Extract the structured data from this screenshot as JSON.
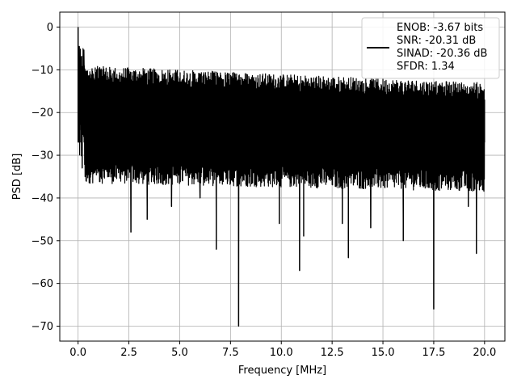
{
  "chart_data": {
    "type": "line",
    "xlabel": "Frequency [MHz]",
    "ylabel": "PSD [dB]",
    "xlim": [
      -0.9,
      21.0
    ],
    "ylim": [
      -73.5,
      3.5
    ],
    "x_ticks": [
      0.0,
      2.5,
      5.0,
      7.5,
      10.0,
      12.5,
      15.0,
      17.5,
      20.0
    ],
    "x_tick_labels": [
      "0.0",
      "2.5",
      "5.0",
      "7.5",
      "10.0",
      "12.5",
      "15.0",
      "17.5",
      "20.0"
    ],
    "y_ticks": [
      0,
      -10,
      -20,
      -30,
      -40,
      -50,
      -60,
      -70
    ],
    "y_tick_labels": [
      "0",
      "−10",
      "−20",
      "−30",
      "−40",
      "−50",
      "−60",
      "−70"
    ],
    "grid": true,
    "legend_position": "top-right",
    "series": [
      {
        "legend_lines": [
          "ENOB: -3.67 bits",
          "SNR: -20.31 dB",
          "SINAD: -20.36 dB",
          "SFDR: 1.34"
        ],
        "color": "#000000",
        "x_range": [
          0.0,
          20.0
        ],
        "noise_floor_band": [
          -11,
          -34
        ],
        "points": [
          [
            0.0,
            0.0
          ],
          [
            0.03,
            -26.5
          ],
          [
            0.06,
            -4.5
          ],
          [
            0.09,
            -20
          ],
          [
            0.15,
            -7
          ],
          [
            0.2,
            -33
          ],
          [
            0.3,
            -9
          ],
          [
            0.45,
            -30
          ],
          [
            0.6,
            -11
          ],
          [
            0.8,
            -32
          ],
          [
            1.0,
            -12
          ],
          [
            1.5,
            -35
          ],
          [
            2.0,
            -13
          ],
          [
            2.6,
            -48
          ],
          [
            3.0,
            -12
          ],
          [
            3.4,
            -45
          ],
          [
            4.0,
            -13
          ],
          [
            4.6,
            -42
          ],
          [
            5.0,
            -12
          ],
          [
            6.0,
            -40
          ],
          [
            6.8,
            -52
          ],
          [
            7.2,
            -14
          ],
          [
            7.9,
            -70
          ],
          [
            8.5,
            -16
          ],
          [
            9.9,
            -46
          ],
          [
            10.9,
            -57
          ],
          [
            11.1,
            -16
          ],
          [
            11.1,
            -49
          ],
          [
            13.0,
            -46
          ],
          [
            13.3,
            -54
          ],
          [
            14.0,
            -16
          ],
          [
            14.4,
            -47
          ],
          [
            16.0,
            -50
          ],
          [
            16.1,
            -18
          ],
          [
            17.5,
            -66
          ],
          [
            18.0,
            -17
          ],
          [
            19.2,
            -42
          ],
          [
            19.6,
            -53
          ],
          [
            20.0,
            -17
          ]
        ]
      }
    ]
  }
}
